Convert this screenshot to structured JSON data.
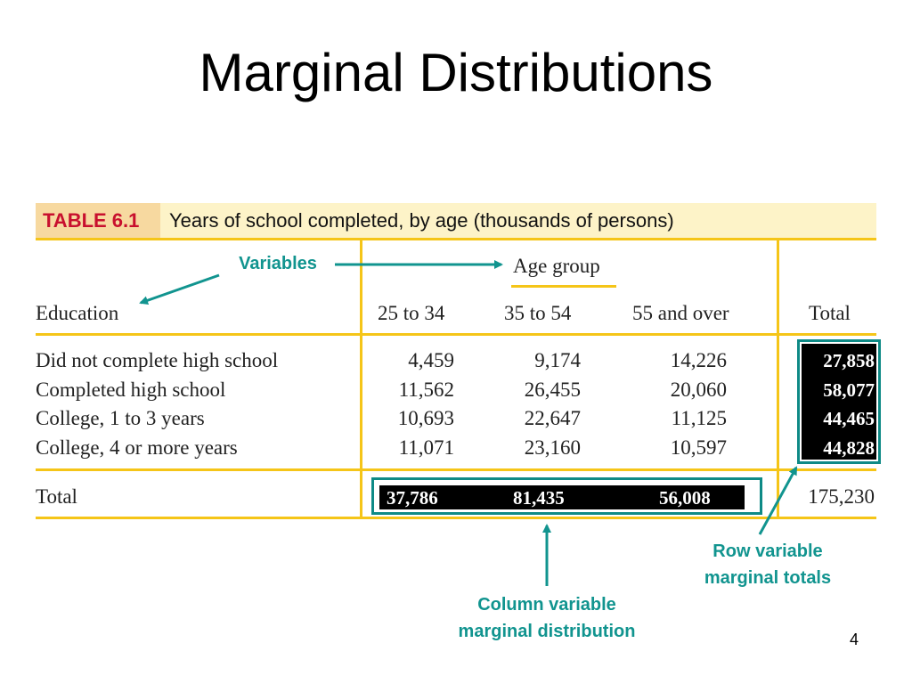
{
  "slide": {
    "title": "Marginal Distributions",
    "page_number": "4"
  },
  "table": {
    "number": "TABLE 6.1",
    "caption": "Years of school completed, by age (thousands of persons)",
    "column_group_header": "Age group",
    "row_header": "Education",
    "columns": [
      "25 to 34",
      "35 to 54",
      "55 and over",
      "Total"
    ],
    "rows": [
      {
        "label": "Did not complete high school",
        "values": [
          "4,459",
          "9,174",
          "14,226"
        ],
        "total": "27,858"
      },
      {
        "label": "Completed high school",
        "values": [
          "11,562",
          "26,455",
          "20,060"
        ],
        "total": "58,077"
      },
      {
        "label": "College, 1 to 3 years",
        "values": [
          "10,693",
          "22,647",
          "11,125"
        ],
        "total": "44,465"
      },
      {
        "label": "College, 4 or more years",
        "values": [
          "11,071",
          "23,160",
          "10,597"
        ],
        "total": "44,828"
      }
    ],
    "total_row": {
      "label": "Total",
      "values": [
        "37,786",
        "81,435",
        "56,008"
      ],
      "grand_total": "175,230"
    }
  },
  "annotations": {
    "variables": "Variables",
    "row_marginal_line1": "Row variable",
    "row_marginal_line2": "marginal totals",
    "column_marginal_line1": "Column variable",
    "column_marginal_line2": "marginal distribution"
  },
  "colors": {
    "table_rule": "#f5c518",
    "annotation_teal": "#11948f",
    "table_number_red": "#c8102e"
  }
}
